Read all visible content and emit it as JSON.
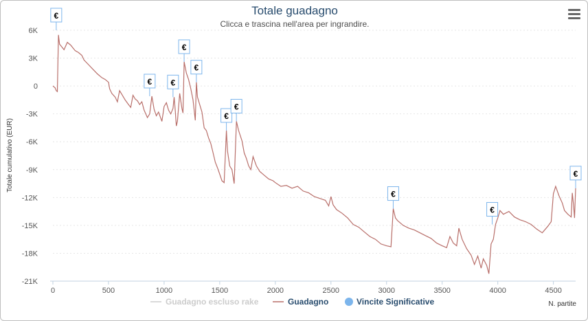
{
  "chart_data": {
    "type": "line",
    "title": "Totale guadagno",
    "subtitle": "Clicca e trascina nell'area per ingrandire.",
    "xlabel": "N. partite",
    "ylabel": "Totale cumulativo (EUR)",
    "xlim": [
      0,
      4700
    ],
    "ylim": [
      -21000,
      6000
    ],
    "x_ticks": [
      "0",
      "500",
      "1000",
      "1500",
      "2000",
      "2500",
      "3000",
      "3500",
      "4000",
      "4500"
    ],
    "y_ticks": [
      "6K",
      "3K",
      "0",
      "-3K",
      "-6K",
      "-9K",
      "-12K",
      "-15K",
      "-18K",
      "-21K"
    ],
    "grid": true,
    "legend_position": "bottom",
    "series": [
      {
        "name": "Guadagno",
        "color": "#b86e69",
        "points": [
          [
            0,
            0
          ],
          [
            20,
            -200
          ],
          [
            30,
            -500
          ],
          [
            40,
            -600
          ],
          [
            50,
            5500
          ],
          [
            60,
            4500
          ],
          [
            80,
            4200
          ],
          [
            100,
            3900
          ],
          [
            130,
            4700
          ],
          [
            160,
            4400
          ],
          [
            200,
            3800
          ],
          [
            230,
            3600
          ],
          [
            260,
            3300
          ],
          [
            280,
            2800
          ],
          [
            320,
            2300
          ],
          [
            360,
            1800
          ],
          [
            400,
            1300
          ],
          [
            440,
            900
          ],
          [
            470,
            700
          ],
          [
            500,
            400
          ],
          [
            510,
            -300
          ],
          [
            530,
            -800
          ],
          [
            560,
            -1200
          ],
          [
            580,
            -1700
          ],
          [
            600,
            -500
          ],
          [
            620,
            -900
          ],
          [
            650,
            -1500
          ],
          [
            680,
            -2000
          ],
          [
            700,
            -2300
          ],
          [
            720,
            -1000
          ],
          [
            740,
            -1400
          ],
          [
            760,
            -1600
          ],
          [
            780,
            -2000
          ],
          [
            800,
            -1700
          ],
          [
            820,
            -2600
          ],
          [
            850,
            -3400
          ],
          [
            870,
            -3000
          ],
          [
            890,
            -1100
          ],
          [
            910,
            -2500
          ],
          [
            930,
            -3200
          ],
          [
            950,
            -2800
          ],
          [
            980,
            -3800
          ],
          [
            1000,
            -2200
          ],
          [
            1020,
            -1800
          ],
          [
            1040,
            -2600
          ],
          [
            1060,
            -3000
          ],
          [
            1080,
            -2400
          ],
          [
            1090,
            -1200
          ],
          [
            1100,
            -2600
          ],
          [
            1110,
            -4300
          ],
          [
            1120,
            -3800
          ],
          [
            1140,
            -800
          ],
          [
            1160,
            -2400
          ],
          [
            1170,
            -2900
          ],
          [
            1180,
            2600
          ],
          [
            1200,
            1400
          ],
          [
            1220,
            700
          ],
          [
            1240,
            -300
          ],
          [
            1260,
            -1500
          ],
          [
            1280,
            -3700
          ],
          [
            1290,
            400
          ],
          [
            1300,
            -1200
          ],
          [
            1320,
            -2000
          ],
          [
            1340,
            -2800
          ],
          [
            1360,
            -4500
          ],
          [
            1380,
            -4800
          ],
          [
            1400,
            -5600
          ],
          [
            1420,
            -6200
          ],
          [
            1440,
            -7200
          ],
          [
            1460,
            -8200
          ],
          [
            1480,
            -8800
          ],
          [
            1500,
            -9500
          ],
          [
            1520,
            -10200
          ],
          [
            1540,
            -10400
          ],
          [
            1560,
            -4800
          ],
          [
            1570,
            -7000
          ],
          [
            1590,
            -8600
          ],
          [
            1610,
            -9000
          ],
          [
            1630,
            -10500
          ],
          [
            1650,
            -3800
          ],
          [
            1670,
            -4800
          ],
          [
            1700,
            -5900
          ],
          [
            1720,
            -7200
          ],
          [
            1740,
            -7800
          ],
          [
            1760,
            -8600
          ],
          [
            1780,
            -9000
          ],
          [
            1800,
            -7600
          ],
          [
            1830,
            -8600
          ],
          [
            1860,
            -9200
          ],
          [
            1900,
            -9600
          ],
          [
            1940,
            -10000
          ],
          [
            1980,
            -10200
          ],
          [
            2000,
            -10400
          ],
          [
            2050,
            -10800
          ],
          [
            2100,
            -10700
          ],
          [
            2150,
            -11000
          ],
          [
            2200,
            -10800
          ],
          [
            2250,
            -11300
          ],
          [
            2300,
            -11500
          ],
          [
            2350,
            -11900
          ],
          [
            2400,
            -12100
          ],
          [
            2450,
            -12300
          ],
          [
            2480,
            -12900
          ],
          [
            2500,
            -11900
          ],
          [
            2520,
            -12800
          ],
          [
            2550,
            -13300
          ],
          [
            2600,
            -13700
          ],
          [
            2650,
            -14200
          ],
          [
            2700,
            -14900
          ],
          [
            2750,
            -15200
          ],
          [
            2800,
            -15700
          ],
          [
            2850,
            -16200
          ],
          [
            2900,
            -16500
          ],
          [
            2950,
            -17000
          ],
          [
            3000,
            -17200
          ],
          [
            3040,
            -17300
          ],
          [
            3060,
            -13200
          ],
          [
            3080,
            -14200
          ],
          [
            3100,
            -14500
          ],
          [
            3150,
            -15000
          ],
          [
            3200,
            -15300
          ],
          [
            3250,
            -15500
          ],
          [
            3300,
            -15800
          ],
          [
            3350,
            -16100
          ],
          [
            3400,
            -16400
          ],
          [
            3450,
            -16900
          ],
          [
            3500,
            -17200
          ],
          [
            3540,
            -17400
          ],
          [
            3570,
            -16200
          ],
          [
            3600,
            -16900
          ],
          [
            3630,
            -17200
          ],
          [
            3650,
            -15300
          ],
          [
            3680,
            -16500
          ],
          [
            3720,
            -17500
          ],
          [
            3760,
            -18200
          ],
          [
            3790,
            -19200
          ],
          [
            3820,
            -18300
          ],
          [
            3850,
            -19600
          ],
          [
            3870,
            -18600
          ],
          [
            3900,
            -19300
          ],
          [
            3920,
            -20200
          ],
          [
            3940,
            -17000
          ],
          [
            3960,
            -16500
          ],
          [
            3980,
            -14900
          ],
          [
            4000,
            -14200
          ],
          [
            4020,
            -13400
          ],
          [
            4050,
            -13800
          ],
          [
            4100,
            -13500
          ],
          [
            4150,
            -14100
          ],
          [
            4200,
            -14400
          ],
          [
            4250,
            -14600
          ],
          [
            4300,
            -14900
          ],
          [
            4350,
            -15400
          ],
          [
            4400,
            -15800
          ],
          [
            4450,
            -15100
          ],
          [
            4480,
            -14600
          ],
          [
            4500,
            -11600
          ],
          [
            4520,
            -10800
          ],
          [
            4550,
            -11800
          ],
          [
            4580,
            -12600
          ],
          [
            4600,
            -13400
          ],
          [
            4630,
            -13800
          ],
          [
            4660,
            -14100
          ],
          [
            4670,
            -11500
          ],
          [
            4680,
            -12700
          ],
          [
            4690,
            -14200
          ],
          [
            4700,
            -11000
          ]
        ]
      },
      {
        "name": "Guadagno escluso rake",
        "color": "#cccccc",
        "disabled": true
      },
      {
        "name": "Vincite Significative",
        "color": "#7cb5ec",
        "marker_label": "€",
        "points": [
          [
            30,
            6000
          ],
          [
            870,
            -1100
          ],
          [
            1080,
            -1200
          ],
          [
            1180,
            2600
          ],
          [
            1290,
            400
          ],
          [
            1560,
            -4800
          ],
          [
            1650,
            -3800
          ],
          [
            3060,
            -13200
          ],
          [
            3950,
            -14900
          ],
          [
            4700,
            -11000
          ]
        ]
      }
    ]
  },
  "ui": {
    "menu_icon": "hamburger-menu-icon"
  }
}
